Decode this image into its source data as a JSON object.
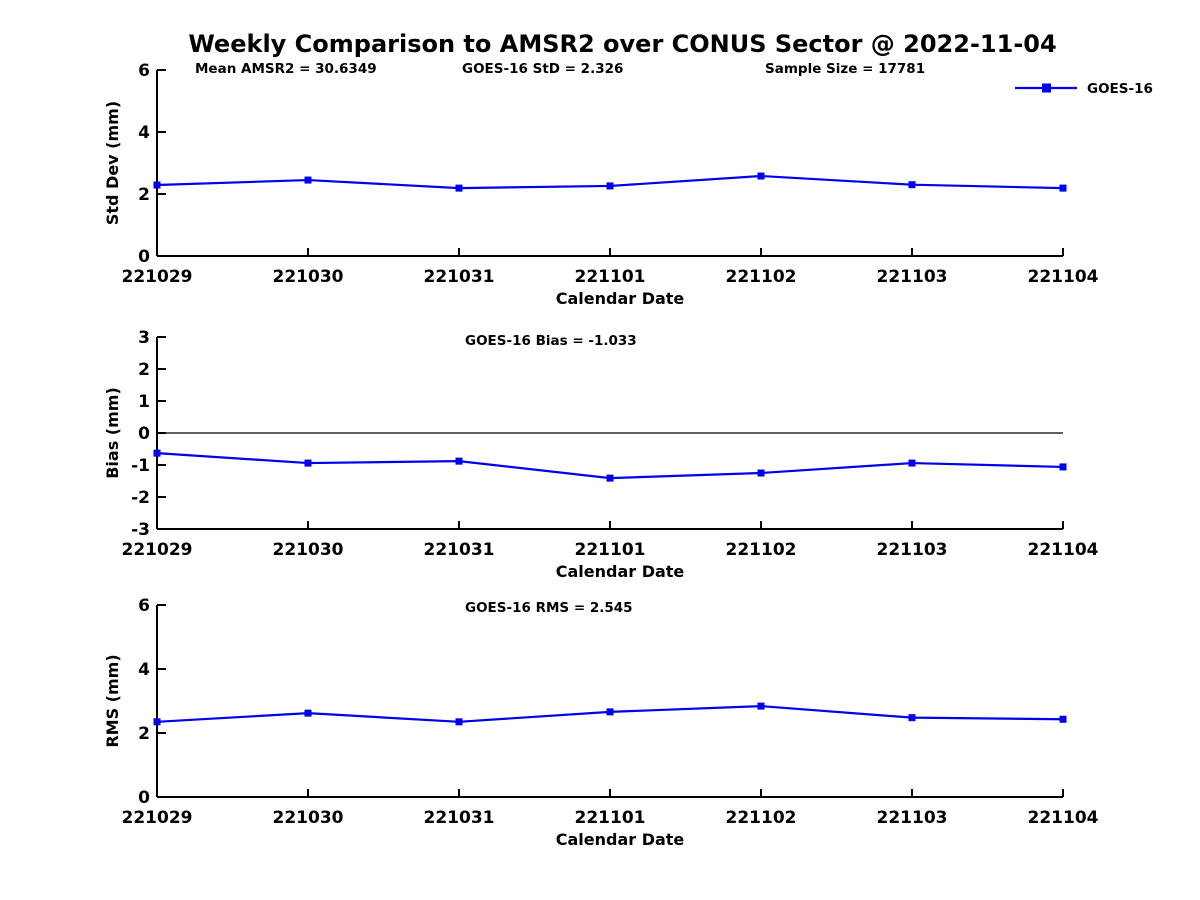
{
  "title": "Weekly Comparison to AMSR2 over CONUS Sector @ 2022-11-04",
  "colors": {
    "series_line": "#0000ee",
    "axis": "#000000",
    "text": "#000000",
    "background": "#ffffff"
  },
  "legend": {
    "label": "GOES-16",
    "position": "top-right"
  },
  "x_axis": {
    "label": "Calendar Date",
    "categories": [
      "221029",
      "221030",
      "221031",
      "221101",
      "221102",
      "221103",
      "221104"
    ]
  },
  "chart_data": [
    {
      "type": "line",
      "name": "std-dev-subplot",
      "categories": [
        "221029",
        "221030",
        "221031",
        "221101",
        "221102",
        "221103",
        "221104"
      ],
      "series": [
        {
          "name": "GOES-16",
          "values": [
            2.29,
            2.45,
            2.19,
            2.26,
            2.58,
            2.3,
            2.19
          ]
        }
      ],
      "annotations": [
        "Mean AMSR2 = 30.6349",
        "GOES-16 StD = 2.326",
        "Sample Size = 17781"
      ],
      "xlabel": "Calendar Date",
      "ylabel": "Std Dev (mm)",
      "ylim": [
        0,
        6
      ],
      "yticks": [
        0,
        2,
        4,
        6
      ],
      "grid": false,
      "zero_line": false,
      "show_legend": true
    },
    {
      "type": "line",
      "name": "bias-subplot",
      "categories": [
        "221029",
        "221030",
        "221031",
        "221101",
        "221102",
        "221103",
        "221104"
      ],
      "series": [
        {
          "name": "GOES-16",
          "values": [
            -0.63,
            -0.94,
            -0.88,
            -1.41,
            -1.25,
            -0.94,
            -1.06
          ]
        }
      ],
      "annotations": [
        "GOES-16 Bias  = -1.033"
      ],
      "xlabel": "Calendar Date",
      "ylabel": "Bias (mm)",
      "ylim": [
        -3,
        3
      ],
      "yticks": [
        3,
        2,
        1,
        0,
        -1,
        -2,
        -3
      ],
      "grid": false,
      "zero_line": true,
      "show_legend": false
    },
    {
      "type": "line",
      "name": "rms-subplot",
      "categories": [
        "221029",
        "221030",
        "221031",
        "221101",
        "221102",
        "221103",
        "221104"
      ],
      "series": [
        {
          "name": "GOES-16",
          "values": [
            2.35,
            2.62,
            2.35,
            2.66,
            2.84,
            2.48,
            2.43
          ]
        }
      ],
      "annotations": [
        "GOES-16 RMS = 2.545"
      ],
      "xlabel": "Calendar Date",
      "ylabel": "RMS (mm)",
      "ylim": [
        0,
        6
      ],
      "yticks": [
        0,
        2,
        4,
        6
      ],
      "grid": false,
      "zero_line": false,
      "show_legend": false
    }
  ]
}
